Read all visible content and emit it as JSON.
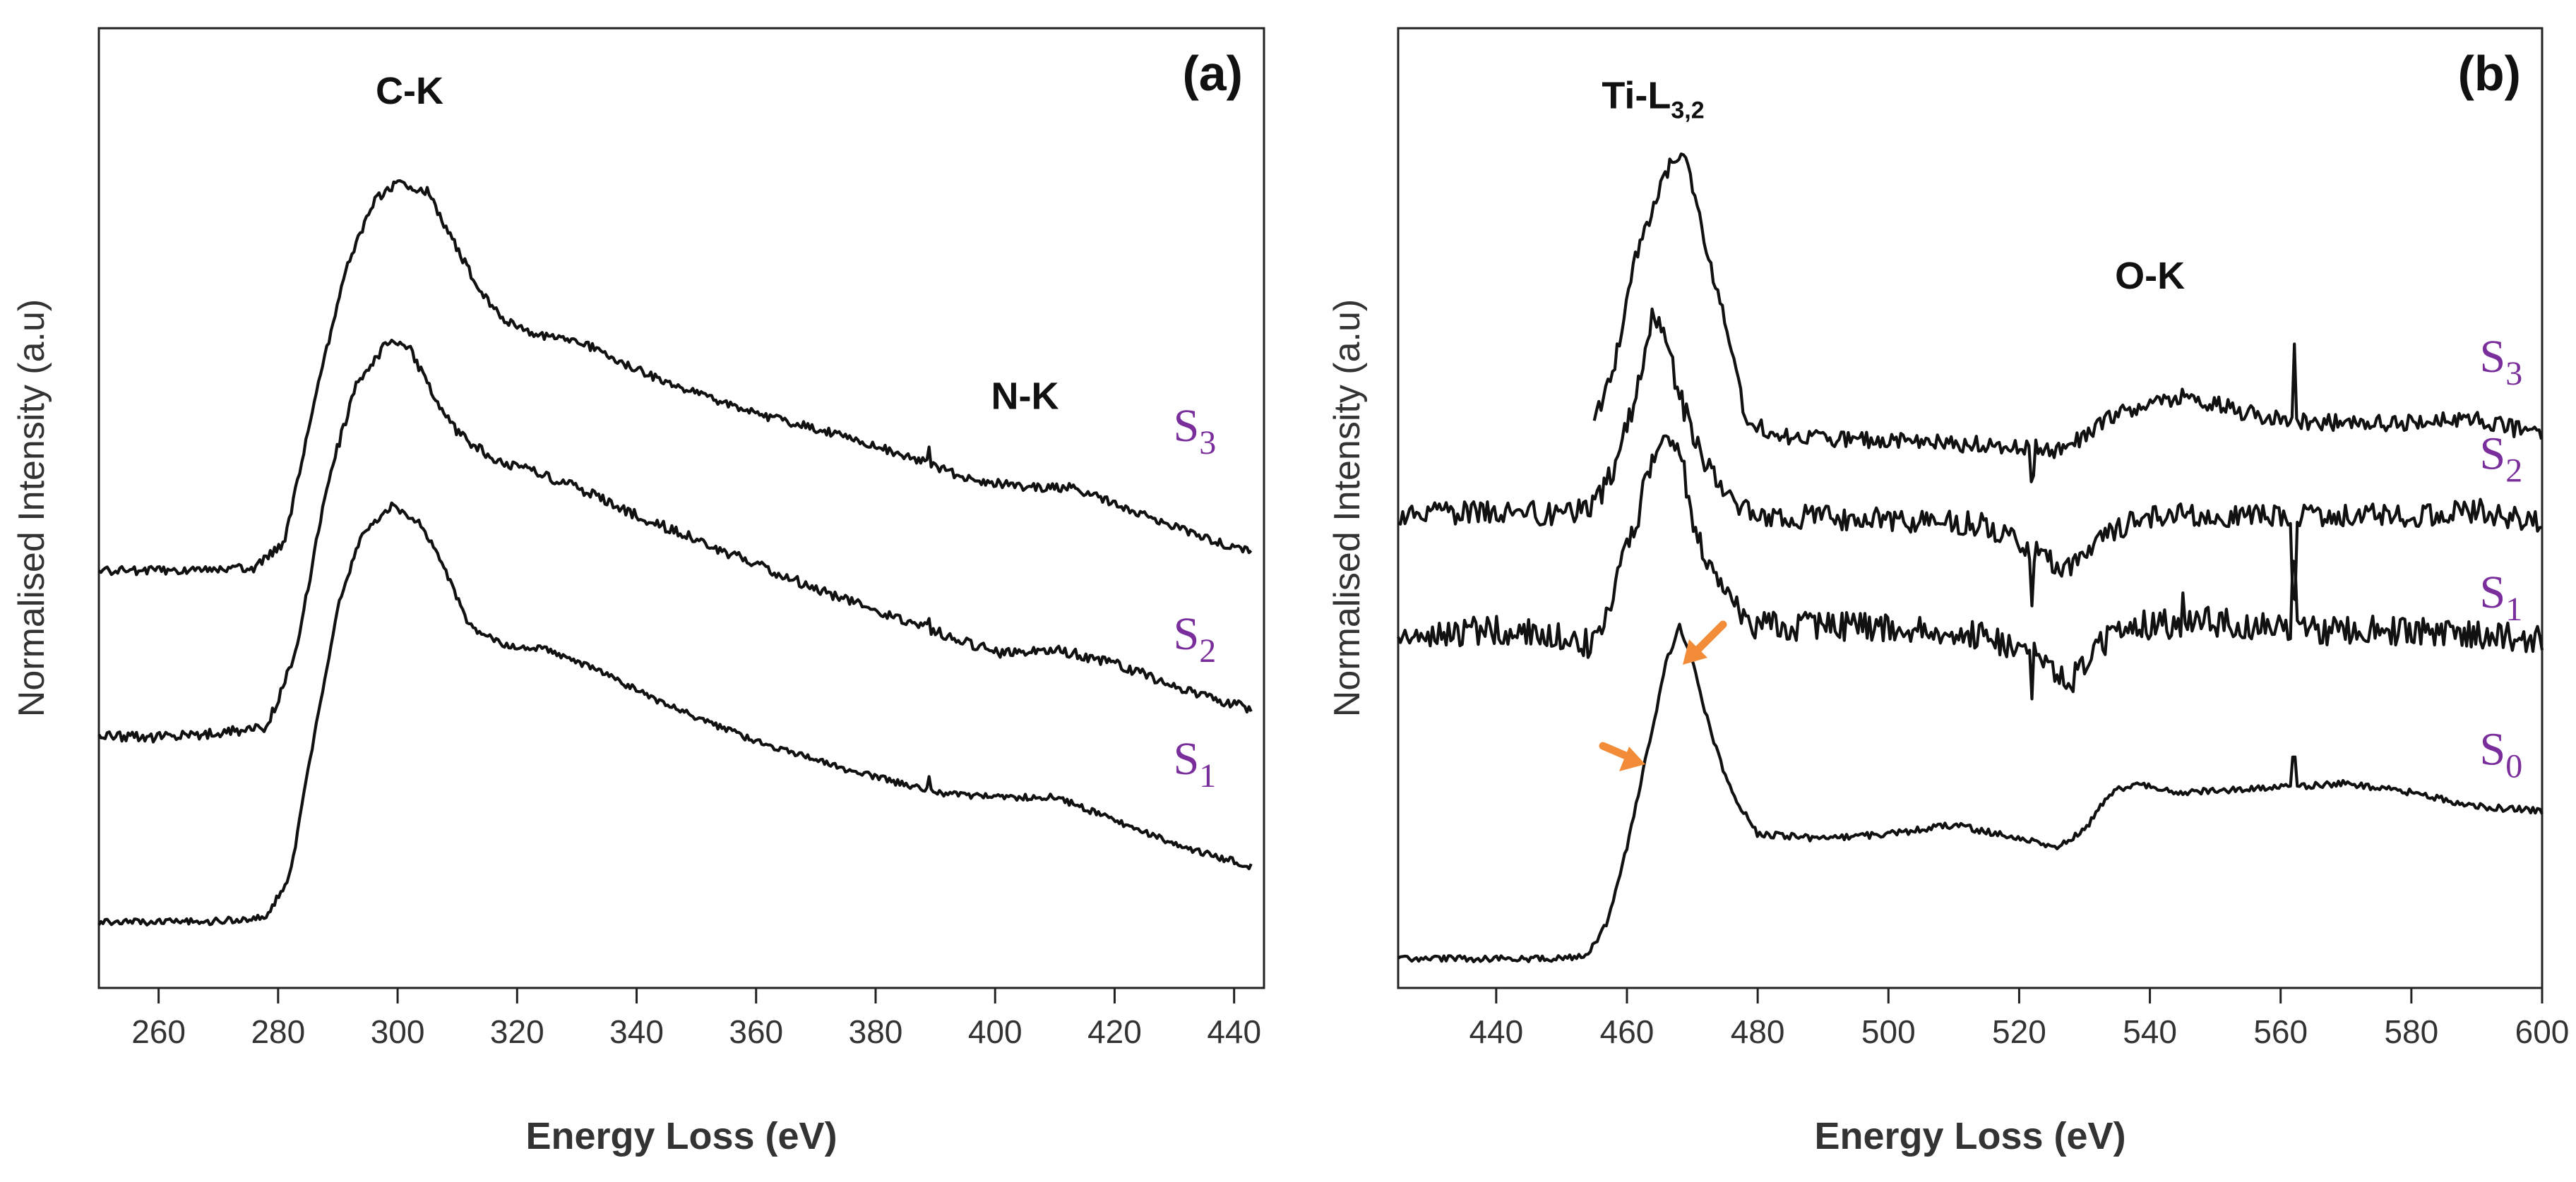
{
  "colors": {
    "trace": "#111111",
    "axis": "#222222",
    "series_label": "#7a2e9c",
    "arrow": "#f28c38",
    "background": "#ffffff"
  },
  "chart_data": [
    {
      "type": "line",
      "panel_label": "(a)",
      "xlabel": "Energy Loss (eV)",
      "ylabel": "Normalised Intensity (a.u)",
      "xlim": [
        250,
        445
      ],
      "ylim": [
        0,
        100
      ],
      "y_ticks_shown": false,
      "x_ticks": [
        260,
        280,
        300,
        320,
        340,
        360,
        380,
        400,
        420,
        440
      ],
      "annotations": [
        {
          "text": "C-K",
          "x": 302,
          "y": 94.5
        },
        {
          "text": "N-K",
          "x": 405,
          "y": 61.5
        }
      ],
      "series": [
        {
          "name": "S3",
          "base": "S",
          "sub": "3",
          "label_at": [
            437,
            58
          ],
          "noise": 0.45,
          "seed": 3,
          "points": [
            [
              250,
              44
            ],
            [
              265,
              44
            ],
            [
              276,
              44.3
            ],
            [
              281,
              47
            ],
            [
              286,
              62
            ],
            [
              291,
              76
            ],
            [
              296,
              84
            ],
            [
              300,
              86
            ],
            [
              305,
              85
            ],
            [
              309,
              80
            ],
            [
              314,
              74
            ],
            [
              318,
              71
            ],
            [
              323,
              69.5
            ],
            [
              330,
              69
            ],
            [
              336,
              67
            ],
            [
              346,
              64
            ],
            [
              360,
              61
            ],
            [
              375,
              58.5
            ],
            [
              387,
              56
            ],
            [
              395,
              54
            ],
            [
              405,
              53
            ],
            [
              413,
              53
            ],
            [
              425,
              50
            ],
            [
              435,
              47.5
            ],
            [
              443,
              46
            ]
          ],
          "spikes": [
            [
              389,
              1.5
            ]
          ]
        },
        {
          "name": "S2",
          "base": "S",
          "sub": "2",
          "label_at": [
            437,
            35.5
          ],
          "noise": 0.55,
          "seed": 7,
          "points": [
            [
              250,
              26
            ],
            [
              262,
              26
            ],
            [
              270,
              26.5
            ],
            [
              278,
              27
            ],
            [
              283,
              35
            ],
            [
              288,
              53
            ],
            [
              293,
              64
            ],
            [
              298,
              68.5
            ],
            [
              302,
              68
            ],
            [
              306,
              63
            ],
            [
              310,
              59
            ],
            [
              316,
              56
            ],
            [
              322,
              55
            ],
            [
              330,
              53
            ],
            [
              340,
              50
            ],
            [
              355,
              46
            ],
            [
              370,
              42
            ],
            [
              383,
              39
            ],
            [
              392,
              37
            ],
            [
              401,
              35
            ],
            [
              410,
              35.5
            ],
            [
              420,
              34
            ],
            [
              430,
              31.5
            ],
            [
              443,
              29
            ]
          ],
          "spikes": [
            [
              389,
              1.2
            ]
          ]
        },
        {
          "name": "S1",
          "base": "S",
          "sub": "1",
          "label_at": [
            437,
            22
          ],
          "noise": 0.35,
          "seed": 11,
          "points": [
            [
              250,
              6
            ],
            [
              268,
              6
            ],
            [
              278,
              6.5
            ],
            [
              282,
              11
            ],
            [
              286,
              26
            ],
            [
              290,
              40
            ],
            [
              294,
              48
            ],
            [
              299,
              51
            ],
            [
              304,
              49
            ],
            [
              308,
              44
            ],
            [
              312,
              38
            ],
            [
              318,
              36
            ],
            [
              325,
              35.5
            ],
            [
              334,
              33
            ],
            [
              345,
              29.5
            ],
            [
              360,
              25.5
            ],
            [
              375,
              22.5
            ],
            [
              390,
              20
            ],
            [
              400,
              19.5
            ],
            [
              410,
              19.5
            ],
            [
              420,
              17
            ],
            [
              432,
              14
            ],
            [
              443,
              12
            ]
          ],
          "spikes": [
            [
              389,
              1.2
            ]
          ]
        }
      ]
    },
    {
      "type": "line",
      "panel_label": "(b)",
      "xlabel": "Energy Loss (eV)",
      "ylabel": "Normalised Intensity (a.u)",
      "xlim": [
        425,
        600
      ],
      "ylim": [
        0,
        100
      ],
      "y_ticks_shown": false,
      "x_ticks": [
        440,
        460,
        480,
        500,
        520,
        540,
        560,
        580,
        600
      ],
      "annotations": [
        {
          "text": "Ti-L",
          "sub": "3,2",
          "x": 464,
          "y": 94
        },
        {
          "text": "O-K",
          "x": 540,
          "y": 74.5
        }
      ],
      "series": [
        {
          "name": "S3",
          "base": "S",
          "sub": "3",
          "label_at": [
            597,
            65.5
          ],
          "noise": 0.9,
          "seed": 5,
          "points": [
            [
              455,
              60
            ],
            [
              458,
              66
            ],
            [
              461,
              77
            ],
            [
              464,
              83
            ],
            [
              467,
              89
            ],
            [
              469,
              88.5
            ],
            [
              472,
              79
            ],
            [
              475,
              71
            ],
            [
              478,
              61
            ],
            [
              482,
              58.5
            ],
            [
              500,
              58
            ],
            [
              520,
              57.5
            ],
            [
              526,
              57
            ],
            [
              530,
              58.5
            ],
            [
              535,
              61
            ],
            [
              545,
              63
            ],
            [
              555,
              61
            ],
            [
              565,
              60
            ],
            [
              580,
              60
            ],
            [
              590,
              60.5
            ],
            [
              600,
              58.5
            ]
          ],
          "spikes": [
            [
              522,
              -3
            ],
            [
              562,
              9
            ]
          ]
        },
        {
          "name": "S2",
          "base": "S",
          "sub": "2",
          "label_at": [
            597,
            55
          ],
          "noise": 1.3,
          "seed": 13,
          "points": [
            [
              425,
              50
            ],
            [
              440,
              50.5
            ],
            [
              450,
              50
            ],
            [
              455,
              51
            ],
            [
              458,
              55
            ],
            [
              461,
              62
            ],
            [
              464,
              72
            ],
            [
              466,
              69
            ],
            [
              468,
              63
            ],
            [
              471,
              57
            ],
            [
              475,
              52
            ],
            [
              480,
              50
            ],
            [
              500,
              49.5
            ],
            [
              515,
              49
            ],
            [
              522,
              46
            ],
            [
              528,
              44
            ],
            [
              533,
              48
            ],
            [
              540,
              50
            ],
            [
              560,
              50
            ],
            [
              580,
              50
            ],
            [
              590,
              50.5
            ],
            [
              600,
              49
            ]
          ],
          "spikes": [
            [
              522,
              -6
            ],
            [
              562,
              -8
            ]
          ]
        },
        {
          "name": "S1",
          "base": "S",
          "sub": "1",
          "label_at": [
            597,
            40
          ],
          "noise": 1.6,
          "seed": 17,
          "points": [
            [
              425,
              37
            ],
            [
              440,
              37.5
            ],
            [
              450,
              37
            ],
            [
              455,
              36
            ],
            [
              458,
              42
            ],
            [
              461,
              48
            ],
            [
              463,
              54
            ],
            [
              466,
              60
            ],
            [
              468,
              57
            ],
            [
              470,
              50
            ],
            [
              473,
              44
            ],
            [
              476,
              40
            ],
            [
              480,
              38
            ],
            [
              500,
              38
            ],
            [
              515,
              37
            ],
            [
              522,
              35
            ],
            [
              528,
              32
            ],
            [
              532,
              36
            ],
            [
              538,
              38
            ],
            [
              550,
              38.5
            ],
            [
              565,
              37.5
            ],
            [
              580,
              37.5
            ],
            [
              600,
              36.5
            ]
          ],
          "spikes": [
            [
              522,
              -6
            ],
            [
              545,
              4
            ],
            [
              562,
              7
            ]
          ]
        },
        {
          "name": "S0",
          "base": "S",
          "sub": "0",
          "label_at": [
            597,
            23
          ],
          "noise": 0.35,
          "seed": 19,
          "points": [
            [
              425,
              2
            ],
            [
              440,
              2
            ],
            [
              450,
              2
            ],
            [
              454,
              2.5
            ],
            [
              457,
              6
            ],
            [
              460,
              14
            ],
            [
              463,
              24
            ],
            [
              466,
              34
            ],
            [
              468,
              38
            ],
            [
              470,
              34
            ],
            [
              473,
              26
            ],
            [
              476,
              20
            ],
            [
              480,
              15.5
            ],
            [
              490,
              15
            ],
            [
              500,
              15.5
            ],
            [
              510,
              16.5
            ],
            [
              520,
              15
            ],
            [
              526,
              14
            ],
            [
              530,
              16
            ],
            [
              534,
              20
            ],
            [
              538,
              21
            ],
            [
              545,
              20
            ],
            [
              560,
              20.5
            ],
            [
              570,
              21
            ],
            [
              580,
              20
            ],
            [
              590,
              18.5
            ],
            [
              600,
              18
            ]
          ],
          "spikes": [
            [
              562,
              3
            ]
          ]
        }
      ]
    }
  ]
}
